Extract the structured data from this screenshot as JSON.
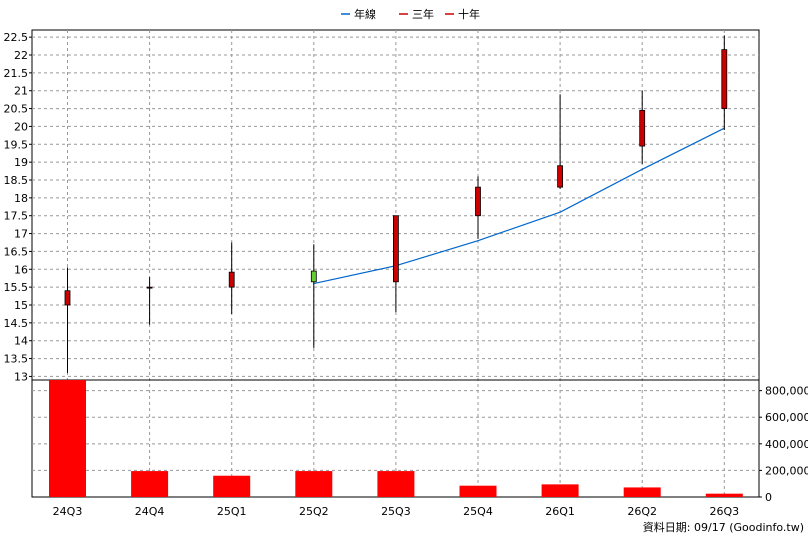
{
  "chart_data": [
    {
      "type": "candlestick",
      "categories": [
        "24Q3",
        "24Q4",
        "25Q1",
        "25Q2",
        "25Q3",
        "25Q4",
        "26Q1",
        "26Q2",
        "26Q3"
      ],
      "ylim": [
        12.9,
        22.7
      ],
      "yticks": [
        "13",
        "13.5",
        "14",
        "14.5",
        "15",
        "15.5",
        "16",
        "16.5",
        "17",
        "17.5",
        "18",
        "18.5",
        "19",
        "19.5",
        "20",
        "20.5",
        "21",
        "21.5",
        "22",
        "22.5"
      ],
      "grid": true,
      "legend": [
        "年線",
        "三年",
        "十年"
      ],
      "legend_position": "top-center",
      "candles": [
        {
          "open": 15.0,
          "close": 15.4,
          "high": 16.05,
          "low": 13.1
        },
        {
          "open": 15.5,
          "close": 15.5,
          "high": 15.78,
          "low": 14.45
        },
        {
          "open": 15.5,
          "close": 15.92,
          "high": 16.75,
          "low": 14.75
        },
        {
          "open": 15.65,
          "close": 15.95,
          "high": 16.7,
          "low": 13.8
        },
        {
          "open": 15.65,
          "close": 17.5,
          "high": 17.5,
          "low": 14.8
        },
        {
          "open": 17.5,
          "close": 18.3,
          "high": 18.6,
          "low": 16.85
        },
        {
          "open": 18.3,
          "close": 18.9,
          "high": 20.9,
          "low": 18.25
        },
        {
          "open": 19.45,
          "close": 20.45,
          "high": 21.0,
          "low": 18.95
        },
        {
          "open": 20.5,
          "close": 22.15,
          "high": 22.55,
          "low": 19.9
        }
      ],
      "series": [
        {
          "name": "年線",
          "color": "#0066cc",
          "values": [
            null,
            null,
            null,
            15.6,
            16.1,
            16.8,
            17.6,
            18.8,
            19.95
          ]
        }
      ],
      "up_color": "#66cc33",
      "down_color": "#cc0000"
    },
    {
      "type": "bar",
      "categories": [
        "24Q3",
        "24Q4",
        "25Q1",
        "25Q2",
        "25Q3",
        "25Q4",
        "26Q1",
        "26Q2",
        "26Q3"
      ],
      "values": [
        880000,
        195000,
        160000,
        195000,
        195000,
        85000,
        95000,
        72000,
        25000
      ],
      "ylim": [
        0,
        880000
      ],
      "yticks": [
        "0",
        "200,000",
        "400,000",
        "600,000",
        "800,000"
      ],
      "color": "#ff0000"
    }
  ],
  "footer": {
    "note": "資料日期: 09/17  (Goodinfo.tw)"
  }
}
